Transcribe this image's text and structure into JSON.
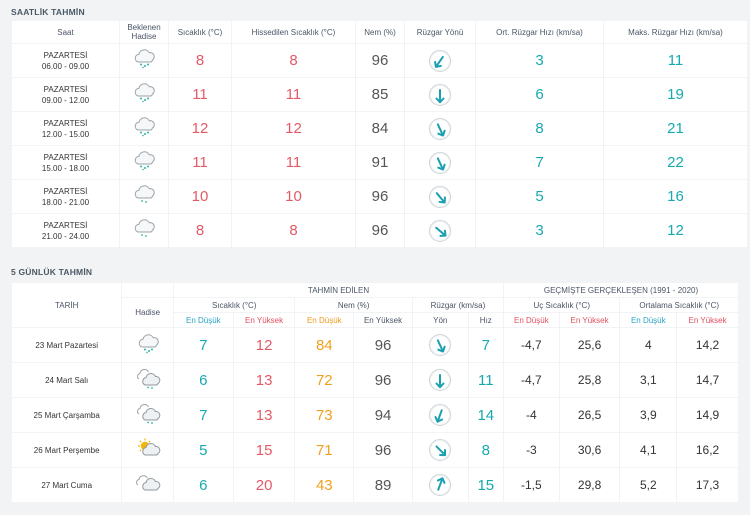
{
  "hourly": {
    "title": "SAATLİK TAHMİN",
    "headers": {
      "time": "Saat",
      "event": "Beklenen Hadise",
      "temp": "Sıcaklık (°C)",
      "feels": "Hissedilen Sıcaklık (°C)",
      "humidity": "Nem (%)",
      "wind_dir": "Rüzgar Yönü",
      "wind_avg": "Ort. Rüzgar Hızı (km/sa)",
      "wind_max": "Maks. Rüzgar Hızı (km/sa)"
    },
    "rows": [
      {
        "day": "PAZARTESİ",
        "time": "06.00 - 09.00",
        "icon": "rain-cloud-icon",
        "temp": "8",
        "feels": "8",
        "humidity": "96",
        "wind_dir_deg": 215,
        "wind_avg": "3",
        "wind_max": "11"
      },
      {
        "day": "PAZARTESİ",
        "time": "09.00 - 12.00",
        "icon": "rain-cloud-icon",
        "temp": "11",
        "feels": "11",
        "humidity": "85",
        "wind_dir_deg": 180,
        "wind_avg": "6",
        "wind_max": "19"
      },
      {
        "day": "PAZARTESİ",
        "time": "12.00 - 15.00",
        "icon": "rain-cloud-icon",
        "temp": "12",
        "feels": "12",
        "humidity": "84",
        "wind_dir_deg": 155,
        "wind_avg": "8",
        "wind_max": "21"
      },
      {
        "day": "PAZARTESİ",
        "time": "15.00 - 18.00",
        "icon": "rain-cloud-icon",
        "temp": "11",
        "feels": "11",
        "humidity": "91",
        "wind_dir_deg": 155,
        "wind_avg": "7",
        "wind_max": "22"
      },
      {
        "day": "PAZARTESİ",
        "time": "18.00 - 21.00",
        "icon": "cloud-icon",
        "temp": "10",
        "feels": "10",
        "humidity": "96",
        "wind_dir_deg": 140,
        "wind_avg": "5",
        "wind_max": "16"
      },
      {
        "day": "PAZARTESİ",
        "time": "21.00 - 24.00",
        "icon": "cloud-icon",
        "temp": "8",
        "feels": "8",
        "humidity": "96",
        "wind_dir_deg": 130,
        "wind_avg": "3",
        "wind_max": "12"
      }
    ]
  },
  "daily": {
    "title": "5 GÜNLÜK TAHMİN",
    "headers": {
      "forecast": "TAHMİN EDİLEN",
      "past": "GEÇMİŞTE GERÇEKLEŞEN (1991 - 2020)",
      "date": "TARİH",
      "event": "Hadise",
      "temp": "Sıcaklık (°C)",
      "humidity": "Nem (%)",
      "wind": "Rüzgar (km/sa)",
      "extreme": "Uç Sıcaklık (°C)",
      "avg": "Ortalama Sıcaklık (°C)",
      "min": "En Düşük",
      "max": "En Yüksek",
      "dir": "Yön",
      "speed": "Hız"
    },
    "rows": [
      {
        "date": "23 Mart Pazartesi",
        "icon": "rain-cloud-icon",
        "tmin": "7",
        "tmax": "12",
        "hmin": "84",
        "hmax": "96",
        "wind_dir_deg": 155,
        "wind_speed": "7",
        "ext_min": "-4,7",
        "ext_max": "25,6",
        "avg_min": "4",
        "avg_max": "14,2"
      },
      {
        "date": "24 Mart Salı",
        "icon": "rain-clouds-icon",
        "tmin": "6",
        "tmax": "13",
        "hmin": "72",
        "hmax": "96",
        "wind_dir_deg": 180,
        "wind_speed": "11",
        "ext_min": "-4,7",
        "ext_max": "25,8",
        "avg_min": "3,1",
        "avg_max": "14,7"
      },
      {
        "date": "25 Mart Çarşamba",
        "icon": "rain-clouds-icon",
        "tmin": "7",
        "tmax": "13",
        "hmin": "73",
        "hmax": "94",
        "wind_dir_deg": 200,
        "wind_speed": "14",
        "ext_min": "-4",
        "ext_max": "26,5",
        "avg_min": "3,9",
        "avg_max": "14,9"
      },
      {
        "date": "26 Mart Perşembe",
        "icon": "partly-cloudy-icon",
        "tmin": "5",
        "tmax": "15",
        "hmin": "71",
        "hmax": "96",
        "wind_dir_deg": 135,
        "wind_speed": "8",
        "ext_min": "-3",
        "ext_max": "30,6",
        "avg_min": "4,1",
        "avg_max": "16,2"
      },
      {
        "date": "27 Mart Cuma",
        "icon": "clouds-icon",
        "tmin": "6",
        "tmax": "20",
        "hmin": "43",
        "hmax": "89",
        "wind_dir_deg": 20,
        "wind_speed": "15",
        "ext_min": "-1,5",
        "ext_max": "29,8",
        "avg_min": "5,2",
        "avg_max": "17,3"
      }
    ]
  },
  "colors": {
    "temp": "#e35a67",
    "humidity": "#f0a020",
    "wind": "#17a9b0",
    "arrow": "#1aa0b0"
  }
}
